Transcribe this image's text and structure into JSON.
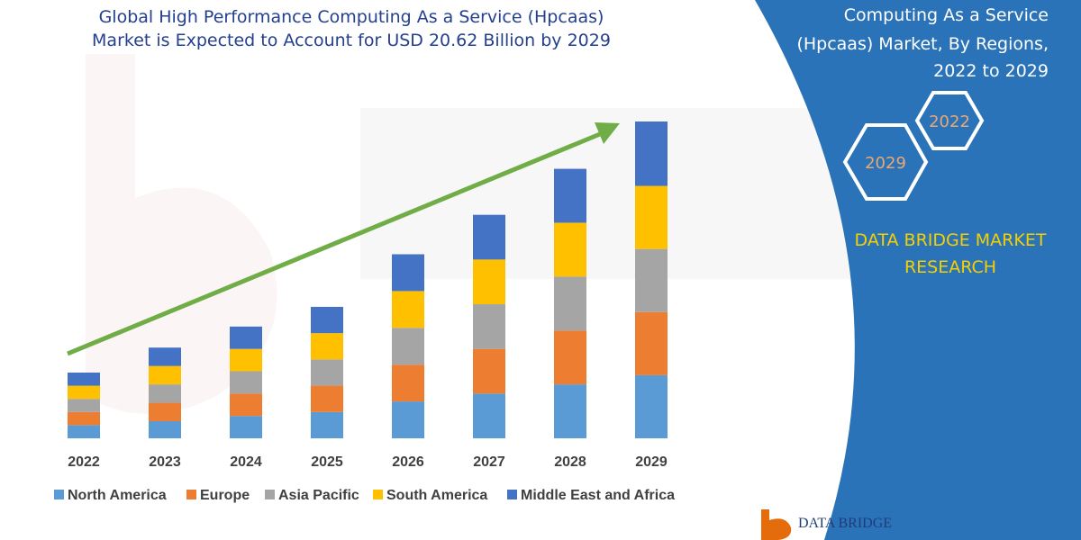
{
  "header": {
    "title_line1": "Global High Performance Computing As a Service (Hpcaas)",
    "title_line2": "Market is Expected to Account for USD 20.62 Billion by 2029"
  },
  "side_panel": {
    "line1": "Computing As a Service",
    "line2": "(Hpcaas) Market, By Regions,",
    "line3": "2022 to 2029",
    "hex_top": "2022",
    "hex_bottom": "2029",
    "brand_line1": "DATA BRIDGE MARKET",
    "brand_line2": "RESEARCH"
  },
  "footer_logo": {
    "text": "DATA BRIDGE"
  },
  "colors": {
    "panel": "#2b73b8",
    "trend_arrow": "#70ad47",
    "series": [
      "#5b9bd5",
      "#ed7d31",
      "#a5a5a5",
      "#ffc000",
      "#4472c4"
    ]
  },
  "chart_data": {
    "type": "bar",
    "stacked": true,
    "categories": [
      "2022",
      "2023",
      "2024",
      "2025",
      "2026",
      "2027",
      "2028",
      "2029"
    ],
    "series": [
      {
        "name": "North America",
        "values": [
          1.0,
          1.3,
          1.7,
          2.0,
          2.8,
          3.4,
          4.1,
          4.8
        ]
      },
      {
        "name": "Europe",
        "values": [
          1.0,
          1.4,
          1.7,
          2.0,
          2.8,
          3.4,
          4.1,
          4.8
        ]
      },
      {
        "name": "Asia Pacific",
        "values": [
          1.0,
          1.4,
          1.7,
          2.0,
          2.8,
          3.4,
          4.1,
          4.8
        ]
      },
      {
        "name": "South America",
        "values": [
          1.0,
          1.4,
          1.7,
          2.0,
          2.8,
          3.4,
          4.1,
          4.8
        ]
      },
      {
        "name": "Middle East and Africa",
        "values": [
          1.0,
          1.4,
          1.7,
          2.0,
          2.8,
          3.4,
          4.1,
          4.9
        ]
      }
    ],
    "ylim": [
      0,
      24.1
    ],
    "grid": false,
    "legend_position": "bottom",
    "title": "",
    "xlabel": "",
    "ylabel": ""
  }
}
